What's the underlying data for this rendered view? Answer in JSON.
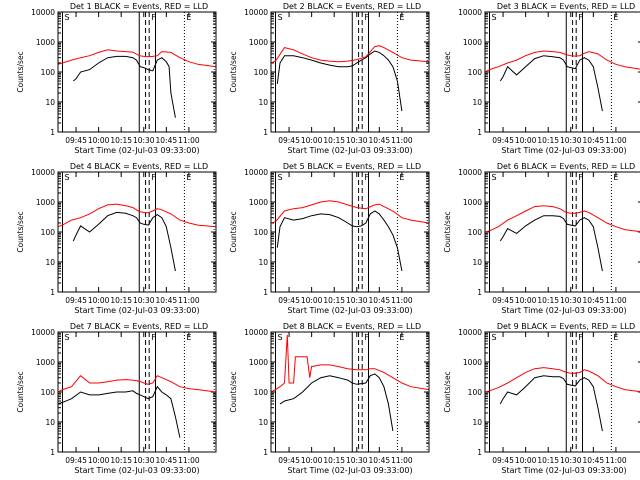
{
  "common": {
    "title_suffix": "BLACK = Events, RED = LLD",
    "xlabel": "Start Time (02-Jul-03 09:33:00)",
    "ylabel": "Counts/sec",
    "x_tick_labels": [
      "09:45",
      "10:00",
      "10:15",
      "10:30",
      "10:45",
      "11:00"
    ],
    "y_tick_labels": [
      "1",
      "10",
      "100",
      "1000",
      "10000"
    ],
    "marker_labels": [
      "S",
      "F",
      "E"
    ]
  },
  "colors": {
    "events": "#000000",
    "lld": "#ff0000",
    "axes": "#000000"
  },
  "chart_data": [
    {
      "type": "line",
      "title": "Det 1",
      "xlim": [
        9.55,
        11.3
      ],
      "ylim": [
        1,
        10000
      ],
      "yscale": "log",
      "markers": {
        "solid": [
          9.6,
          10.45,
          10.63
        ],
        "dashed": [
          10.52,
          10.56
        ],
        "dotted": [
          10.95,
          11.28
        ]
      },
      "series": [
        {
          "name": "Events",
          "x": [
            9.72,
            9.75,
            9.8,
            9.9,
            10.0,
            10.1,
            10.2,
            10.3,
            10.38,
            10.42,
            10.46,
            10.5,
            10.55,
            10.6,
            10.65,
            10.7,
            10.75,
            10.78,
            10.8,
            10.85
          ],
          "y": [
            50,
            60,
            100,
            120,
            200,
            300,
            330,
            330,
            300,
            250,
            150,
            140,
            120,
            110,
            250,
            300,
            220,
            150,
            20,
            3
          ]
        },
        {
          "name": "LLD",
          "x": [
            9.55,
            9.6,
            9.7,
            9.8,
            9.9,
            10.0,
            10.1,
            10.2,
            10.3,
            10.38,
            10.45,
            10.5,
            10.55,
            10.6,
            10.65,
            10.7,
            10.8,
            10.9,
            11.0,
            11.1,
            11.3
          ],
          "y": [
            180,
            200,
            250,
            300,
            350,
            450,
            550,
            500,
            480,
            460,
            350,
            330,
            320,
            330,
            350,
            480,
            450,
            300,
            220,
            180,
            150
          ]
        }
      ]
    },
    {
      "type": "line",
      "title": "Det 2",
      "xlim": [
        9.55,
        11.3
      ],
      "ylim": [
        1,
        10000
      ],
      "yscale": "log",
      "markers": {
        "solid": [
          9.6,
          10.45,
          10.63
        ],
        "dashed": [
          10.52,
          10.56
        ],
        "dotted": [
          10.95,
          11.28
        ]
      },
      "series": [
        {
          "name": "Events",
          "x": [
            9.62,
            9.65,
            9.7,
            9.8,
            9.9,
            10.0,
            10.1,
            10.2,
            10.3,
            10.4,
            10.45,
            10.5,
            10.55,
            10.6,
            10.65,
            10.7,
            10.75,
            10.8,
            10.85,
            10.9,
            10.95,
            11.0
          ],
          "y": [
            40,
            200,
            350,
            350,
            300,
            250,
            200,
            170,
            150,
            150,
            160,
            200,
            250,
            300,
            400,
            500,
            450,
            350,
            250,
            150,
            50,
            5
          ]
        },
        {
          "name": "LLD",
          "x": [
            9.55,
            9.6,
            9.7,
            9.8,
            9.9,
            10.0,
            10.1,
            10.2,
            10.3,
            10.4,
            10.5,
            10.6,
            10.7,
            10.75,
            10.8,
            10.9,
            11.0,
            11.1,
            11.3
          ],
          "y": [
            200,
            230,
            650,
            550,
            400,
            300,
            250,
            230,
            220,
            230,
            260,
            320,
            700,
            750,
            650,
            450,
            300,
            250,
            220
          ]
        }
      ]
    },
    {
      "type": "line",
      "title": "Det 3",
      "xlim": [
        9.55,
        11.3
      ],
      "ylim": [
        1,
        10000
      ],
      "yscale": "log",
      "markers": {
        "solid": [
          9.6,
          10.45,
          10.63
        ],
        "dashed": [
          10.52,
          10.56
        ],
        "dotted": [
          10.95,
          11.28
        ]
      },
      "series": [
        {
          "name": "Events",
          "x": [
            9.72,
            9.75,
            9.8,
            9.9,
            10.0,
            10.1,
            10.2,
            10.3,
            10.38,
            10.42,
            10.46,
            10.5,
            10.55,
            10.6,
            10.65,
            10.7,
            10.75,
            10.8,
            10.85
          ],
          "y": [
            50,
            70,
            150,
            80,
            150,
            280,
            350,
            320,
            300,
            250,
            150,
            140,
            130,
            250,
            300,
            250,
            150,
            30,
            5
          ]
        },
        {
          "name": "LLD",
          "x": [
            9.55,
            9.6,
            9.7,
            9.8,
            9.9,
            10.0,
            10.1,
            10.2,
            10.3,
            10.38,
            10.45,
            10.5,
            10.55,
            10.6,
            10.65,
            10.7,
            10.8,
            10.9,
            11.0,
            11.1,
            11.3
          ],
          "y": [
            100,
            120,
            150,
            200,
            250,
            350,
            450,
            500,
            480,
            450,
            380,
            350,
            340,
            350,
            420,
            480,
            400,
            250,
            180,
            150,
            120
          ]
        }
      ]
    },
    {
      "type": "line",
      "title": "Det 4",
      "xlim": [
        9.55,
        11.3
      ],
      "ylim": [
        1,
        10000
      ],
      "yscale": "log",
      "markers": {
        "solid": [
          9.6,
          10.45,
          10.63
        ],
        "dashed": [
          10.52,
          10.56
        ],
        "dotted": [
          10.95,
          11.28
        ]
      },
      "series": [
        {
          "name": "Events",
          "x": [
            9.72,
            9.75,
            9.8,
            9.9,
            10.0,
            10.1,
            10.2,
            10.3,
            10.38,
            10.42,
            10.46,
            10.5,
            10.55,
            10.6,
            10.65,
            10.7,
            10.75,
            10.8,
            10.85
          ],
          "y": [
            50,
            80,
            160,
            100,
            180,
            350,
            450,
            420,
            350,
            300,
            200,
            180,
            170,
            300,
            380,
            300,
            150,
            30,
            5
          ]
        },
        {
          "name": "LLD",
          "x": [
            9.55,
            9.6,
            9.7,
            9.8,
            9.9,
            10.0,
            10.1,
            10.2,
            10.3,
            10.38,
            10.45,
            10.5,
            10.55,
            10.6,
            10.65,
            10.7,
            10.8,
            10.9,
            11.0,
            11.1,
            11.3
          ],
          "y": [
            150,
            170,
            250,
            300,
            400,
            600,
            800,
            850,
            750,
            650,
            480,
            450,
            440,
            500,
            600,
            550,
            400,
            250,
            200,
            170,
            150
          ]
        }
      ]
    },
    {
      "type": "line",
      "title": "Det 5",
      "xlim": [
        9.55,
        11.3
      ],
      "ylim": [
        1,
        10000
      ],
      "yscale": "log",
      "markers": {
        "solid": [
          9.6,
          10.45,
          10.63
        ],
        "dashed": [
          10.52,
          10.56
        ],
        "dotted": [
          10.95,
          11.28
        ]
      },
      "series": [
        {
          "name": "Events",
          "x": [
            9.62,
            9.65,
            9.7,
            9.8,
            9.9,
            10.0,
            10.1,
            10.2,
            10.3,
            10.4,
            10.45,
            10.5,
            10.55,
            10.6,
            10.65,
            10.7,
            10.75,
            10.8,
            10.85,
            10.9,
            10.95,
            11.0
          ],
          "y": [
            30,
            150,
            300,
            250,
            280,
            350,
            400,
            380,
            300,
            200,
            160,
            150,
            160,
            200,
            400,
            500,
            400,
            250,
            150,
            80,
            30,
            5
          ]
        },
        {
          "name": "LLD",
          "x": [
            9.55,
            9.6,
            9.7,
            9.8,
            9.9,
            10.0,
            10.1,
            10.2,
            10.3,
            10.4,
            10.5,
            10.6,
            10.7,
            10.75,
            10.8,
            10.9,
            11.0,
            11.1,
            11.3
          ],
          "y": [
            200,
            220,
            500,
            600,
            650,
            800,
            1000,
            1100,
            1000,
            800,
            650,
            600,
            800,
            850,
            700,
            500,
            300,
            250,
            200
          ]
        }
      ]
    },
    {
      "type": "line",
      "title": "Det 6",
      "xlim": [
        9.55,
        11.3
      ],
      "ylim": [
        1,
        10000
      ],
      "yscale": "log",
      "markers": {
        "solid": [
          9.6,
          10.45,
          10.63
        ],
        "dashed": [
          10.52,
          10.56
        ],
        "dotted": [
          10.95,
          11.28
        ]
      },
      "series": [
        {
          "name": "Events",
          "x": [
            9.72,
            9.75,
            9.8,
            9.9,
            10.0,
            10.1,
            10.2,
            10.3,
            10.38,
            10.42,
            10.46,
            10.5,
            10.55,
            10.6,
            10.65,
            10.7,
            10.75,
            10.8,
            10.85
          ],
          "y": [
            50,
            70,
            130,
            90,
            160,
            250,
            350,
            350,
            330,
            280,
            180,
            170,
            160,
            250,
            300,
            250,
            150,
            30,
            5
          ]
        },
        {
          "name": "LLD",
          "x": [
            9.55,
            9.6,
            9.7,
            9.8,
            9.9,
            10.0,
            10.1,
            10.2,
            10.3,
            10.38,
            10.45,
            10.5,
            10.55,
            10.6,
            10.65,
            10.7,
            10.8,
            10.9,
            11.0,
            11.1,
            11.3
          ],
          "y": [
            100,
            110,
            150,
            250,
            350,
            500,
            700,
            750,
            700,
            600,
            450,
            420,
            420,
            450,
            500,
            450,
            300,
            200,
            150,
            120,
            100
          ]
        }
      ]
    },
    {
      "type": "line",
      "title": "Det 7",
      "xlim": [
        9.55,
        11.3
      ],
      "ylim": [
        1,
        10000
      ],
      "yscale": "log",
      "markers": {
        "solid": [
          9.6,
          10.45,
          10.63
        ],
        "dashed": [
          10.52,
          10.56
        ],
        "dotted": [
          10.95,
          11.28
        ]
      },
      "series": [
        {
          "name": "Events",
          "x": [
            9.55,
            9.6,
            9.7,
            9.8,
            9.9,
            10.0,
            10.1,
            10.2,
            10.3,
            10.38,
            10.42,
            10.46,
            10.5,
            10.55,
            10.6,
            10.65,
            10.7,
            10.75,
            10.8,
            10.85,
            10.9
          ],
          "y": [
            40,
            45,
            60,
            100,
            80,
            80,
            90,
            100,
            100,
            110,
            90,
            80,
            70,
            60,
            70,
            150,
            100,
            80,
            60,
            15,
            3
          ]
        },
        {
          "name": "LLD",
          "x": [
            9.55,
            9.6,
            9.7,
            9.8,
            9.9,
            10.0,
            10.1,
            10.2,
            10.3,
            10.38,
            10.45,
            10.5,
            10.55,
            10.6,
            10.65,
            10.7,
            10.8,
            10.9,
            11.0,
            11.1,
            11.3
          ],
          "y": [
            100,
            120,
            150,
            350,
            200,
            200,
            220,
            250,
            260,
            250,
            230,
            200,
            180,
            200,
            350,
            300,
            220,
            150,
            130,
            120,
            100
          ]
        }
      ]
    },
    {
      "type": "line",
      "title": "Det 8",
      "xlim": [
        9.55,
        11.3
      ],
      "ylim": [
        1,
        10000
      ],
      "yscale": "log",
      "markers": {
        "solid": [
          9.6,
          10.45,
          10.63
        ],
        "dashed": [
          10.52,
          10.56
        ],
        "dotted": [
          10.95,
          11.28
        ]
      },
      "series": [
        {
          "name": "Events",
          "x": [
            9.65,
            9.7,
            9.8,
            9.9,
            10.0,
            10.1,
            10.2,
            10.3,
            10.4,
            10.45,
            10.5,
            10.55,
            10.6,
            10.65,
            10.7,
            10.75,
            10.8,
            10.85,
            10.9
          ],
          "y": [
            40,
            50,
            60,
            100,
            200,
            300,
            350,
            300,
            250,
            200,
            180,
            190,
            200,
            350,
            400,
            300,
            150,
            40,
            5
          ]
        },
        {
          "name": "LLD",
          "x": [
            9.55,
            9.6,
            9.65,
            9.7,
            9.73,
            9.75,
            9.78,
            9.8,
            9.82,
            9.85,
            9.9,
            9.95,
            9.98,
            10.0,
            10.1,
            10.2,
            10.3,
            10.4,
            10.5,
            10.6,
            10.65,
            10.7,
            10.8,
            10.9,
            11.0,
            11.1,
            11.3
          ],
          "y": [
            100,
            120,
            150,
            200,
            8000,
            200,
            200,
            200,
            1500,
            1500,
            1500,
            1500,
            300,
            700,
            800,
            800,
            700,
            600,
            550,
            550,
            600,
            600,
            450,
            300,
            200,
            150,
            120
          ]
        }
      ]
    },
    {
      "type": "line",
      "title": "Det 9",
      "xlim": [
        9.55,
        11.3
      ],
      "ylim": [
        1,
        10000
      ],
      "yscale": "log",
      "markers": {
        "solid": [
          9.6,
          10.45,
          10.63
        ],
        "dashed": [
          10.52,
          10.56
        ],
        "dotted": [
          10.95,
          11.28
        ]
      },
      "series": [
        {
          "name": "Events",
          "x": [
            9.72,
            9.75,
            9.8,
            9.9,
            10.0,
            10.1,
            10.2,
            10.3,
            10.38,
            10.42,
            10.46,
            10.5,
            10.55,
            10.6,
            10.65,
            10.7,
            10.75,
            10.8,
            10.85
          ],
          "y": [
            40,
            60,
            100,
            80,
            150,
            300,
            350,
            320,
            320,
            280,
            180,
            170,
            160,
            250,
            300,
            250,
            150,
            30,
            5
          ]
        },
        {
          "name": "LLD",
          "x": [
            9.55,
            9.6,
            9.7,
            9.8,
            9.9,
            10.0,
            10.1,
            10.2,
            10.3,
            10.38,
            10.45,
            10.5,
            10.55,
            10.6,
            10.65,
            10.7,
            10.8,
            10.9,
            11.0,
            11.1,
            11.3
          ],
          "y": [
            100,
            110,
            140,
            200,
            300,
            450,
            600,
            650,
            600,
            550,
            450,
            420,
            420,
            450,
            550,
            500,
            350,
            200,
            150,
            120,
            100
          ]
        }
      ]
    }
  ]
}
